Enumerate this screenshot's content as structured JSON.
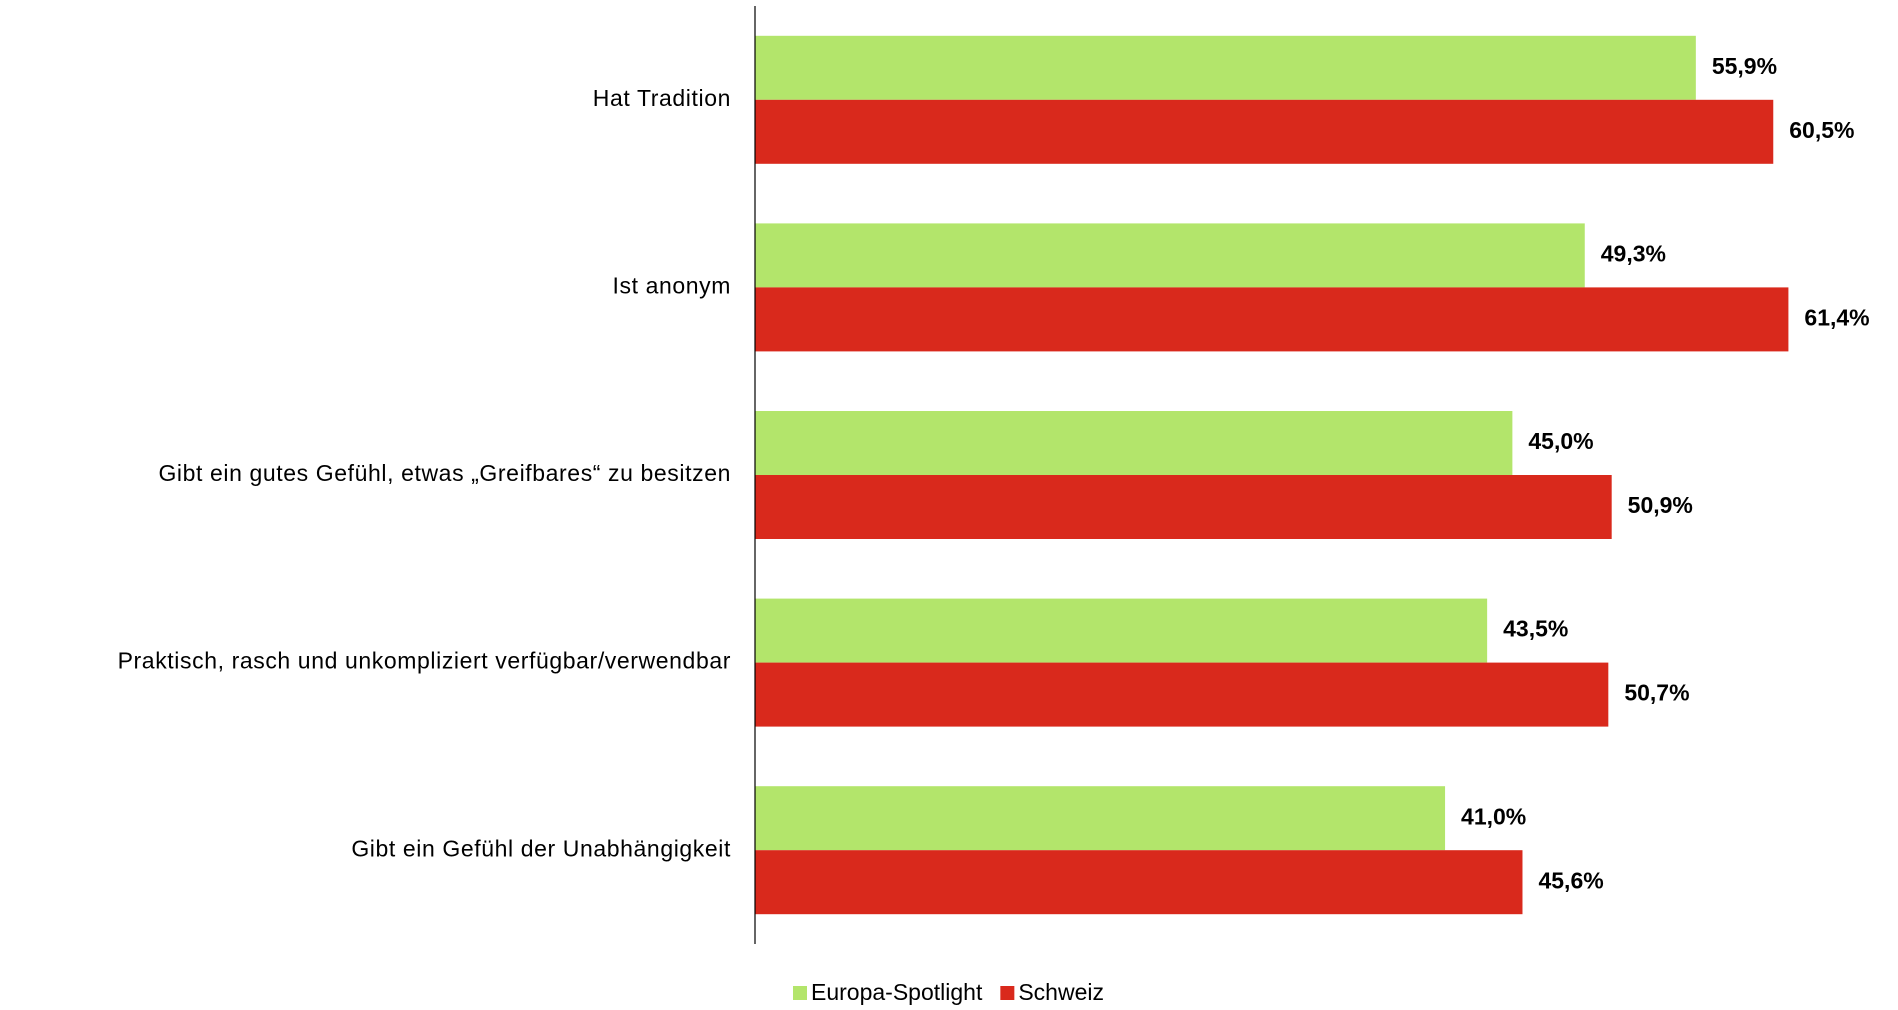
{
  "chart_data": {
    "type": "hbar",
    "categories": [
      "Hat Tradition",
      "Ist anonym",
      "Gibt ein gutes Gefühl, etwas „Greifbares“ zu besitzen",
      "Praktisch, rasch und unkompliziert verfügbar/verwendbar",
      "Gibt ein Gefühl der Unabhängigkeit"
    ],
    "series": [
      {
        "name": "Europa-Spotlight",
        "color": "#b3e56b",
        "values": [
          55.9,
          49.3,
          45.0,
          43.5,
          41.0
        ],
        "value_labels": [
          "55,9%",
          "49,3%",
          "45,0%",
          "43,5%",
          "41,0%"
        ]
      },
      {
        "name": "Schweiz",
        "color": "#d9291c",
        "values": [
          60.5,
          61.4,
          50.9,
          50.7,
          45.6
        ],
        "value_labels": [
          "60,5%",
          "61,4%",
          "50,9%",
          "50,7%",
          "45,6%"
        ]
      }
    ],
    "xlim": [
      0,
      65
    ],
    "legend": "bottom"
  }
}
